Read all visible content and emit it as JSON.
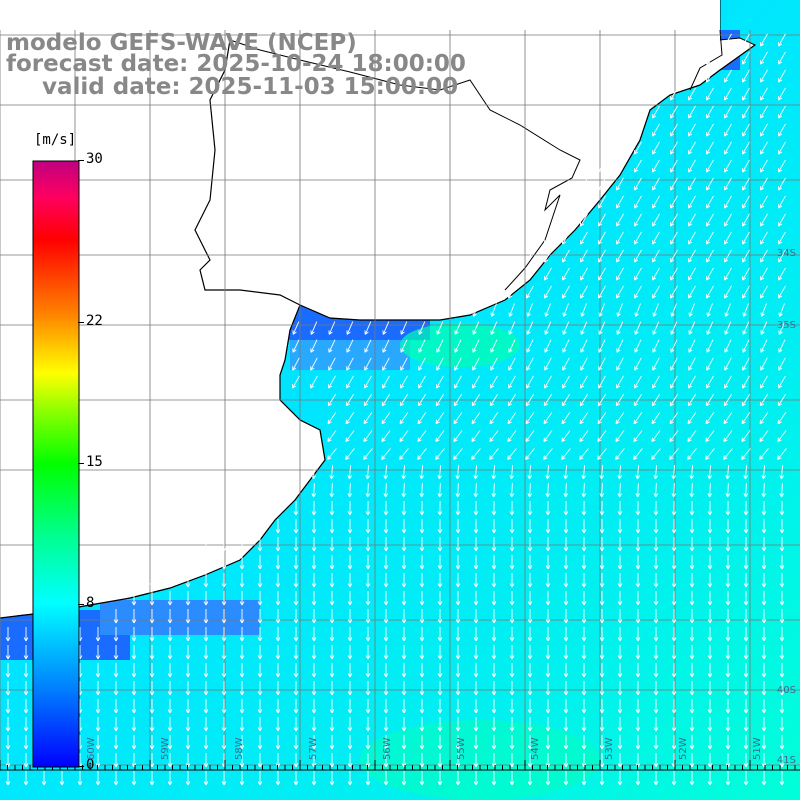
{
  "title": {
    "model": "modelo GEFS-WAVE (NCEP)",
    "forecast": "forecast date: 2025-10-24 18:00:00",
    "valid": "valid date: 2025-11-03 15:00:00"
  },
  "colorbar": {
    "units": "[m/s]",
    "ticks": [
      "30",
      "22",
      "15",
      "8",
      "0"
    ],
    "tick_values": [
      30,
      22,
      15,
      8,
      0
    ],
    "range": [
      0,
      30
    ],
    "colors": [
      "#0000ff",
      "#0080ff",
      "#00ffff",
      "#00ff80",
      "#00ff00",
      "#80ff00",
      "#ffff00",
      "#ff8000",
      "#ff0000",
      "#ff0060",
      "#c00080"
    ]
  },
  "map": {
    "field": "wind speed and direction",
    "land_color": "#ffffff",
    "grid_color": "#777777",
    "coast_color": "#000000",
    "arrow_color": "#ffffff",
    "lat_labels": [
      "34S",
      "35S",
      "40S",
      "41S"
    ],
    "lon_labels": [
      "60W",
      "59W",
      "58W",
      "57W",
      "56W",
      "55W",
      "54W",
      "53W",
      "52W",
      "51W"
    ],
    "dominant_direction": "from north / north-east"
  }
}
